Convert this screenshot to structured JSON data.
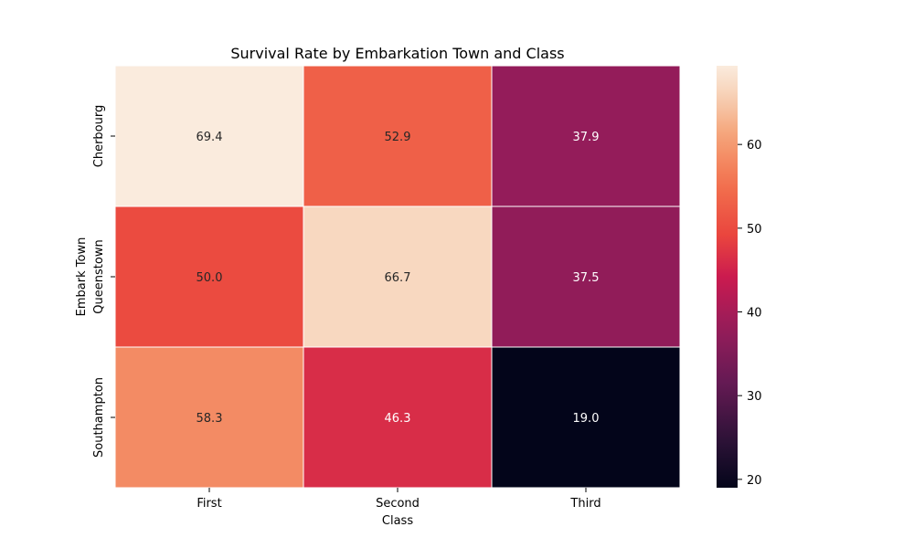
{
  "chart_data": {
    "type": "heatmap",
    "title": "Survival Rate by Embarkation Town and Class",
    "xlabel": "Class",
    "ylabel": "Embark Town",
    "x_categories": [
      "First",
      "Second",
      "Third"
    ],
    "y_categories": [
      "Cherbourg",
      "Queenstown",
      "Southampton"
    ],
    "values": [
      [
        69.4,
        52.9,
        37.9
      ],
      [
        50.0,
        66.7,
        37.5
      ],
      [
        58.3,
        46.3,
        19.0
      ]
    ],
    "value_labels": [
      [
        "69.4",
        "52.9",
        "37.9"
      ],
      [
        "50.0",
        "66.7",
        "37.5"
      ],
      [
        "58.3",
        "46.3",
        "19.0"
      ]
    ],
    "value_range": [
      19.0,
      69.4
    ],
    "colormap": "rocket",
    "colorbar": {
      "ticks": [
        20,
        30,
        40,
        50,
        60
      ],
      "tick_labels": [
        "20",
        "30",
        "40",
        "50",
        "60"
      ]
    },
    "cell_border_color": "#ffffff",
    "grid": false,
    "legend": "colorbar-right"
  }
}
